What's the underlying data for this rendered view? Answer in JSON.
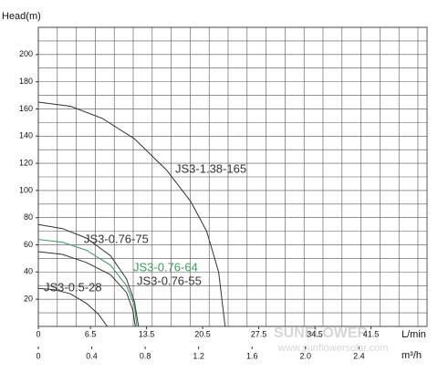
{
  "chart_data": {
    "type": "line",
    "y_label": "Head(m)",
    "x_label": "L/min",
    "x2_label": "m³/h",
    "xlim": [
      0,
      48.5
    ],
    "xticks": [
      0,
      6.5,
      13.5,
      20.5,
      27.5,
      34.5,
      41.5
    ],
    "x2lim": [
      0,
      2.91
    ],
    "x2ticks": [
      0,
      0.4,
      0.8,
      1.2,
      1.6,
      {
        "value": 2,
        "label": "2.0"
      },
      2.4
    ],
    "ylim": [
      0,
      220
    ],
    "yticks": [
      20,
      40,
      60,
      80,
      100,
      120,
      140,
      160,
      180,
      200
    ],
    "grid": true,
    "series": [
      {
        "name": "JS3-1.38-165",
        "color": "#333333",
        "x": [
          0,
          4,
          8,
          12,
          16,
          19,
          21,
          22.5,
          23.3
        ],
        "values": [
          165,
          162,
          153,
          138,
          115,
          92,
          70,
          40,
          0
        ]
      },
      {
        "name": "JS3-0.76-75",
        "color": "#333333",
        "x": [
          0,
          3,
          6,
          9,
          11,
          12,
          12.5
        ],
        "values": [
          75,
          72,
          65,
          52,
          35,
          18,
          0
        ]
      },
      {
        "name": "JS3-0.76-64",
        "color": "#3a9a5a",
        "x": [
          0,
          3,
          6,
          9,
          11,
          12,
          12.3
        ],
        "values": [
          64,
          62,
          56,
          45,
          30,
          15,
          0
        ]
      },
      {
        "name": "JS3-0.76-55",
        "color": "#333333",
        "x": [
          0,
          3,
          6,
          9,
          11,
          11.8,
          12.1
        ],
        "values": [
          55,
          53,
          47,
          38,
          25,
          12,
          0
        ]
      },
      {
        "name": "JS3-0.5-28",
        "color": "#333333",
        "x": [
          0,
          2,
          4,
          6,
          7.5,
          8.6
        ],
        "values": [
          28,
          27,
          24,
          17,
          9,
          0
        ]
      }
    ],
    "watermark": [
      "SUNFLOWER",
      "www.sunflowersolar.com"
    ]
  }
}
